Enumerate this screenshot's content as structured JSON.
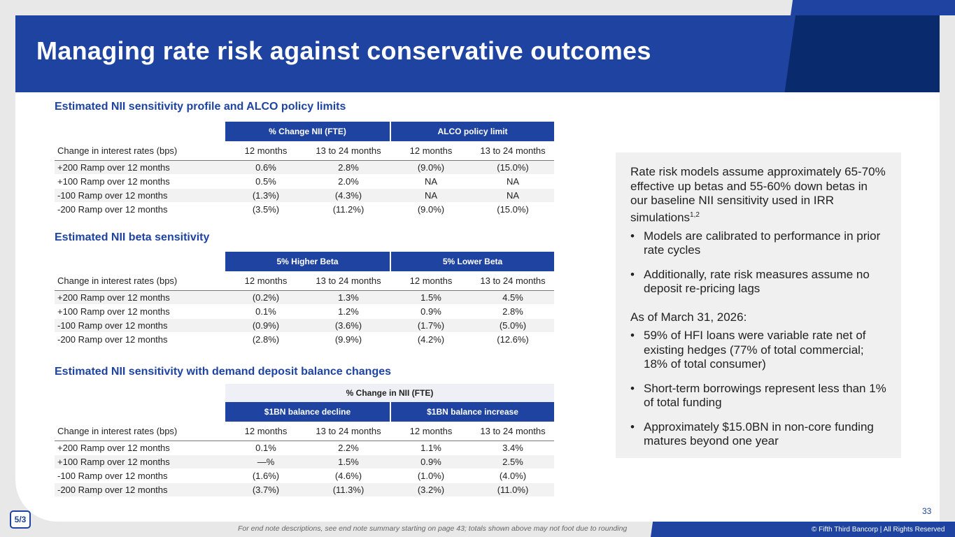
{
  "title": "Managing rate risk against conservative outcomes",
  "section1": {
    "title": "Estimated NII sensitivity profile and ALCO policy limits",
    "group_headers": [
      "% Change NII (FTE)",
      "ALCO policy limit"
    ],
    "columns": [
      "Change in interest rates (bps)",
      "12 months",
      "13 to 24 months",
      "12 months",
      "13 to 24 months"
    ],
    "rows": [
      [
        "+200 Ramp over 12 months",
        "0.6%",
        "2.8%",
        "(9.0%)",
        "(15.0%)"
      ],
      [
        "+100 Ramp over 12 months",
        "0.5%",
        "2.0%",
        "NA",
        "NA"
      ],
      [
        "-100 Ramp over 12 months",
        "(1.3%)",
        "(4.3%)",
        "NA",
        "NA"
      ],
      [
        "-200 Ramp over 12 months",
        "(3.5%)",
        "(11.2%)",
        "(9.0%)",
        "(15.0%)"
      ]
    ]
  },
  "section2": {
    "title": "Estimated NII beta sensitivity",
    "group_headers": [
      "5% Higher Beta",
      "5% Lower Beta"
    ],
    "columns": [
      "Change in interest rates (bps)",
      "12 months",
      "13 to 24 months",
      "12 months",
      "13 to 24 months"
    ],
    "rows": [
      [
        "+200 Ramp over 12 months",
        "(0.2%)",
        "1.3%",
        "1.5%",
        "4.5%"
      ],
      [
        "+100 Ramp over 12 months",
        "0.1%",
        "1.2%",
        "0.9%",
        "2.8%"
      ],
      [
        "-100 Ramp over 12 months",
        "(0.9%)",
        "(3.6%)",
        "(1.7%)",
        "(5.0%)"
      ],
      [
        "-200 Ramp over 12 months",
        "(2.8%)",
        "(9.9%)",
        "(4.2%)",
        "(12.6%)"
      ]
    ]
  },
  "section3": {
    "title": "Estimated NII sensitivity with demand deposit balance changes",
    "super_header": "% Change in NII (FTE)",
    "group_headers": [
      "$1BN balance decline",
      "$1BN balance increase"
    ],
    "columns": [
      "Change in interest rates (bps)",
      "12 months",
      "13 to 24 months",
      "12 months",
      "13 to 24 months"
    ],
    "rows": [
      [
        "+200 Ramp over 12 months",
        "0.1%",
        "2.2%",
        "1.1%",
        "3.4%"
      ],
      [
        "+100 Ramp over 12 months",
        "—%",
        "1.5%",
        "0.9%",
        "2.5%"
      ],
      [
        "-100 Ramp over 12 months",
        "(1.6%)",
        "(4.6%)",
        "(1.0%)",
        "(4.0%)"
      ],
      [
        "-200 Ramp over 12 months",
        "(3.7%)",
        "(11.3%)",
        "(3.2%)",
        "(11.0%)"
      ]
    ]
  },
  "panel": {
    "intro": "Rate risk models assume approximately 65-70% effective up betas and 55-60% down betas in our baseline NII sensitivity used in IRR simulations",
    "intro_sup": "1,2",
    "bullets1": [
      "Models are calibrated to performance in prior rate cycles",
      "Additionally, rate risk measures assume no deposit re-pricing lags"
    ],
    "as_of": "As of March 31, 2026:",
    "bullets2": [
      "59% of HFI loans were variable rate net of existing hedges (77% of total commercial; 18% of total consumer)",
      "Short-term borrowings represent less than 1% of total funding",
      "Approximately $15.0BN in non-core funding matures beyond one year"
    ]
  },
  "page_number": "33",
  "logo_text": "5/3",
  "footer_note": "For end note descriptions, see end note summary starting on page 43; totals shown above may not foot due to rounding",
  "copyright": "© Fifth Third Bancorp | All Rights Reserved",
  "colors": {
    "brand_blue": "#1e43a0",
    "dark_navy": "#0a2a6e"
  }
}
